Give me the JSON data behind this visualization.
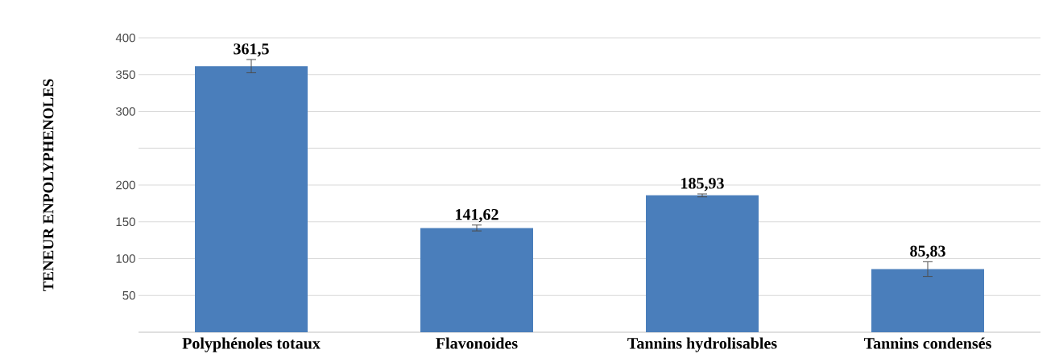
{
  "chart_data": {
    "type": "bar",
    "ylabel": "TENEUR ENPOLYPHENOLES",
    "categories": [
      "Polyphénoles totaux",
      "Flavonoides",
      "Tannins hydrolisables",
      "Tannins condensés"
    ],
    "values": [
      361.5,
      141.62,
      185.93,
      85.83
    ],
    "errors": [
      9,
      4,
      2,
      10
    ],
    "value_labels": [
      "361,5",
      "141,62",
      "185,93",
      "85,83"
    ],
    "color": "#4a7ebb",
    "ylim": [
      0,
      400
    ],
    "yticks": [
      50,
      100,
      150,
      200,
      {
        "value": 250,
        "label": null
      },
      300,
      350,
      400
    ],
    "grid": "y"
  }
}
